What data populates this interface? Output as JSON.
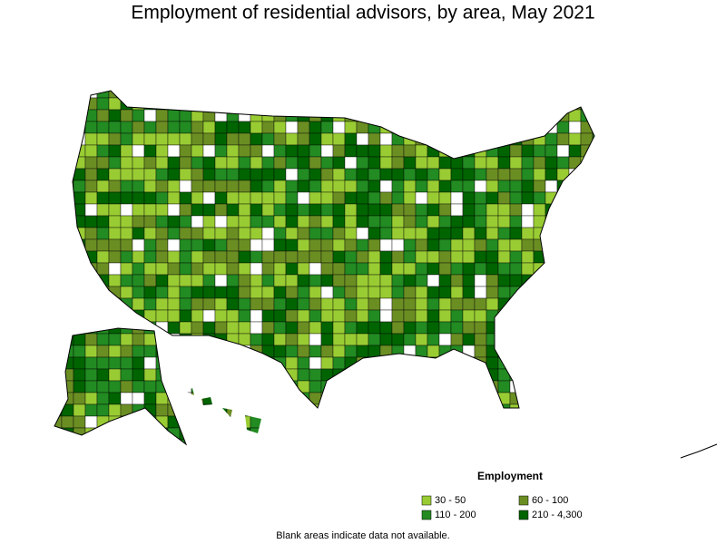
{
  "title": "Employment of residential advisors, by area, May 2021",
  "legend": {
    "title": "Employment",
    "items": [
      {
        "label": "30 - 50",
        "color": "#99cc33"
      },
      {
        "label": "60 - 100",
        "color": "#6b8e23"
      },
      {
        "label": "110 - 200",
        "color": "#228b22"
      },
      {
        "label": "210 - 4,300",
        "color": "#006400"
      }
    ]
  },
  "note": "Blank areas indicate data not available."
}
